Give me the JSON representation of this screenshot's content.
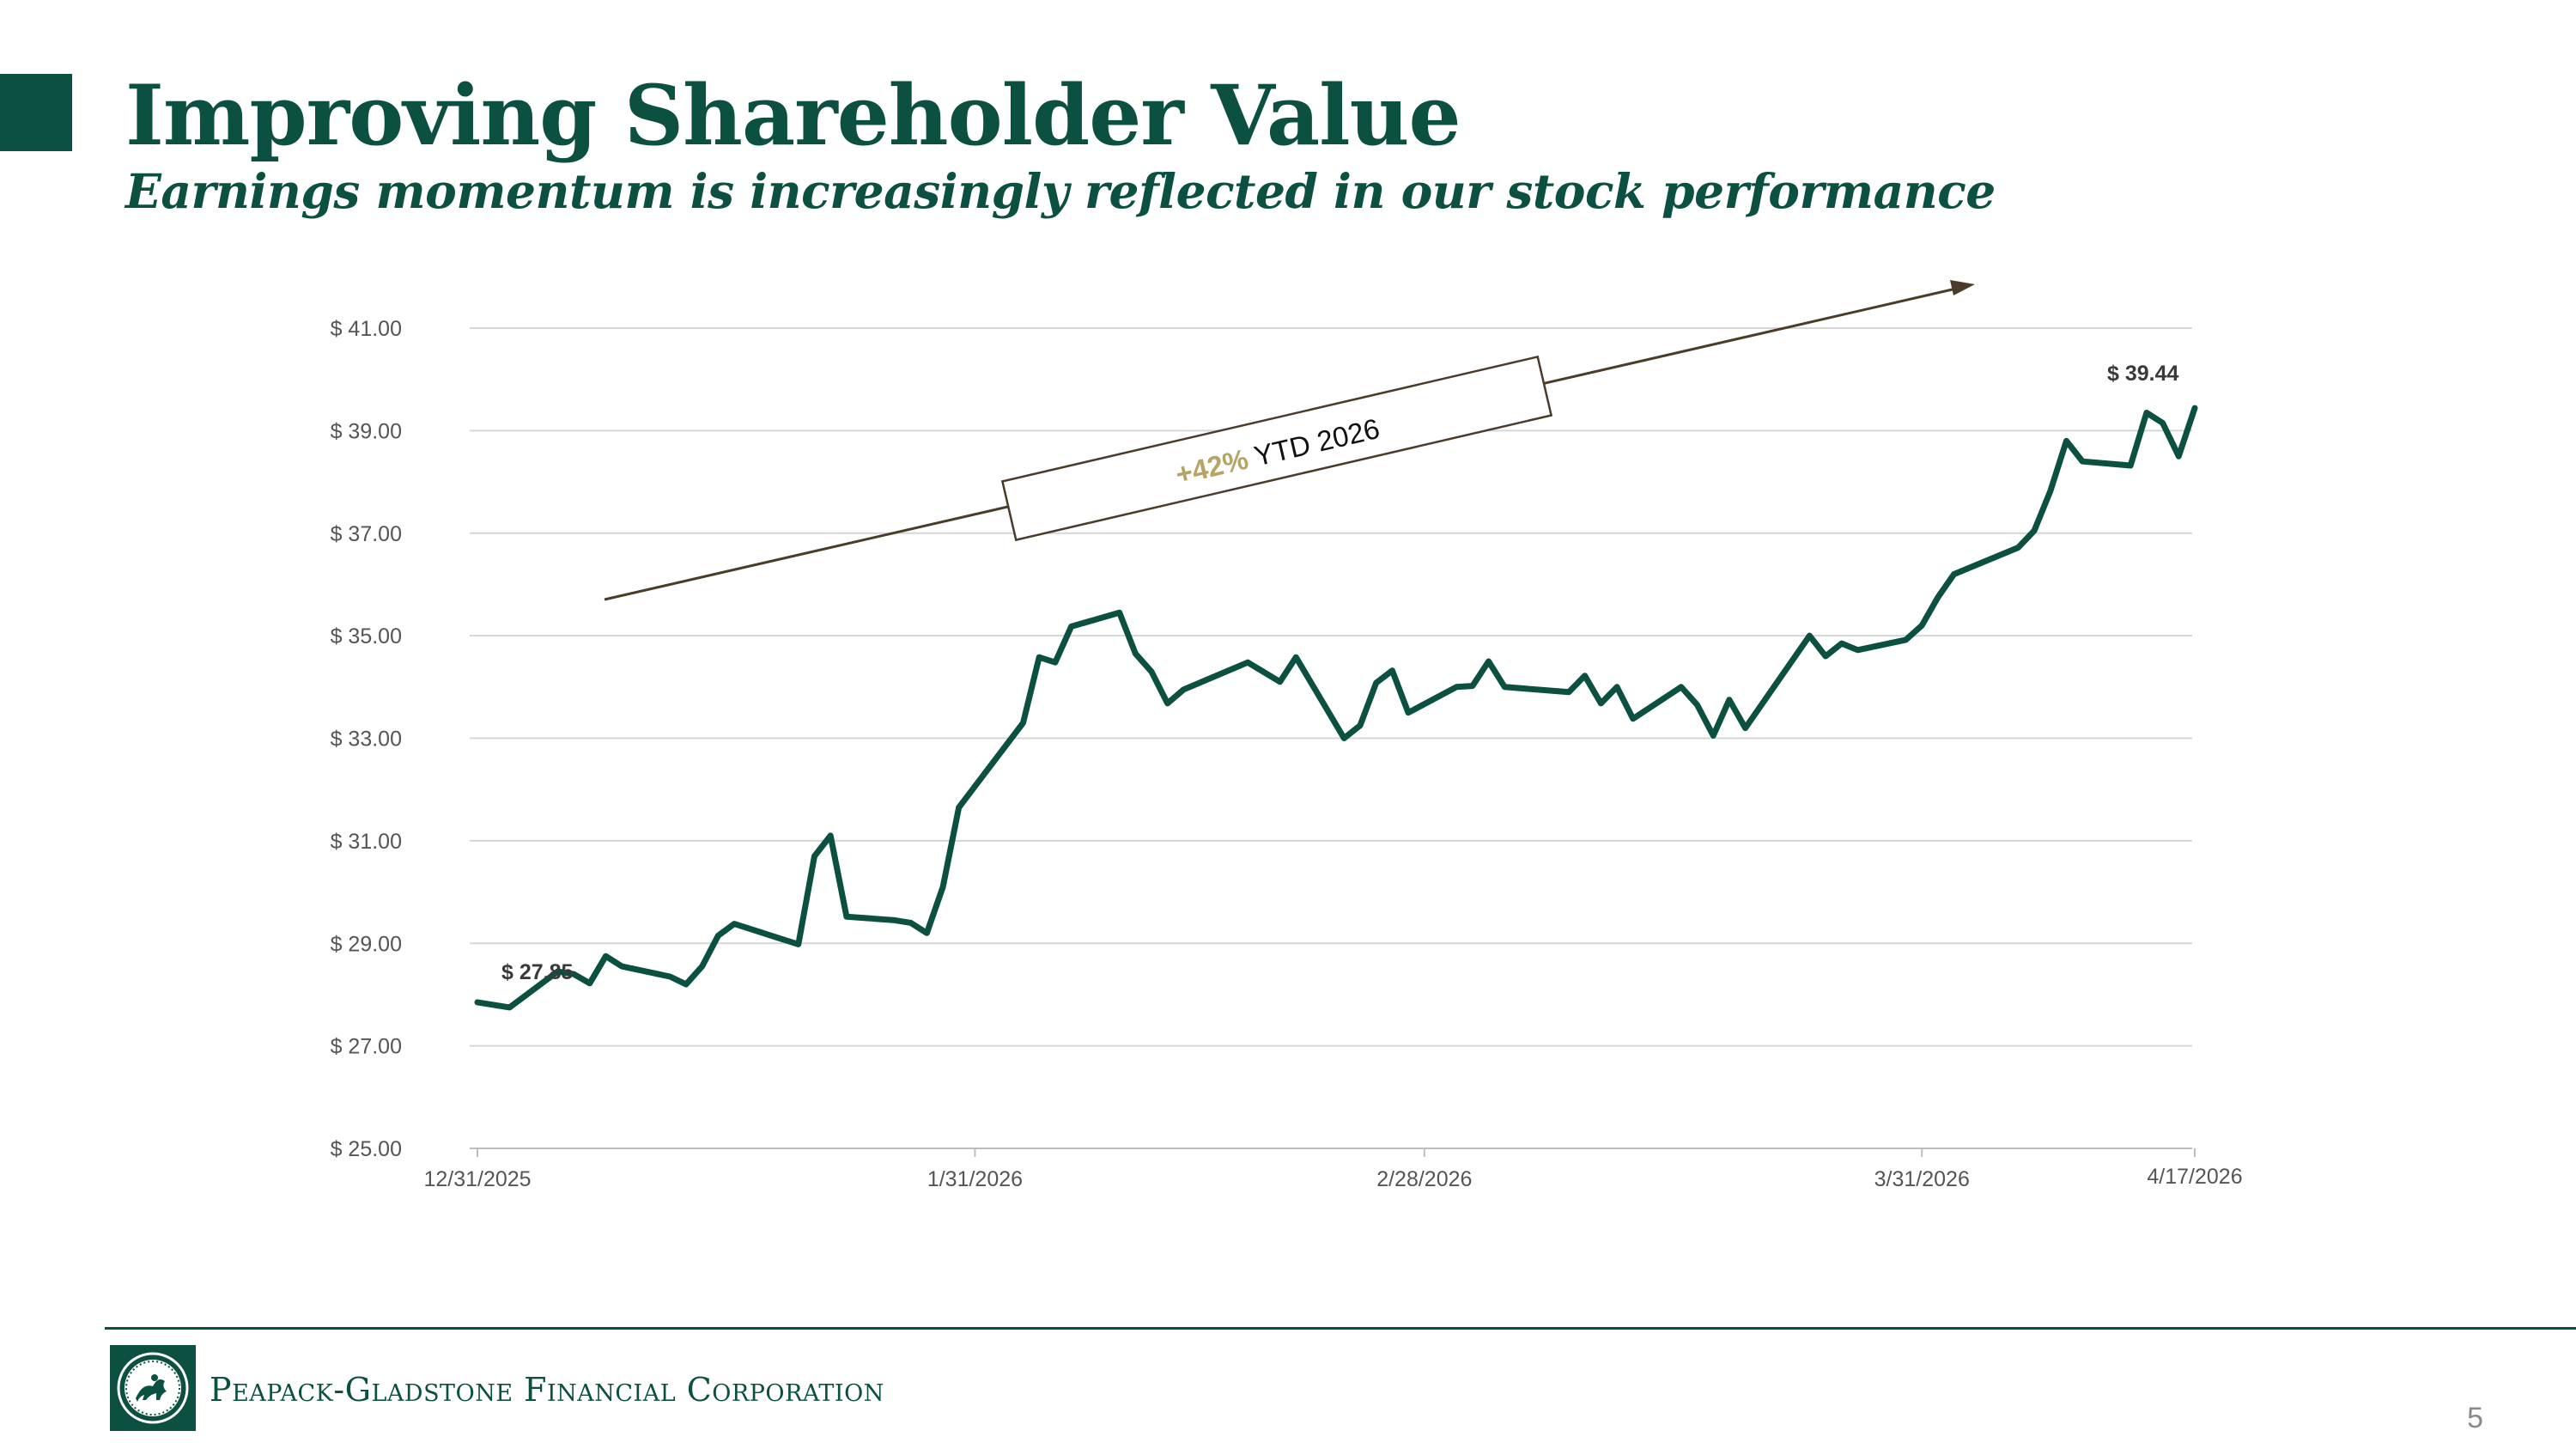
{
  "slide": {
    "title": "Improving Shareholder Value",
    "subtitle": "Earnings momentum is increasingly reflected in our stock performance",
    "page_number": "5"
  },
  "footer": {
    "company_name": "Peapack-Gladstone Financial Corporation"
  },
  "colors": {
    "brand_green": "#0b5040",
    "accent_gold": "#b5a466",
    "arrow_brown": "#4a3b2a"
  },
  "annotation": {
    "pct": "+42%",
    "rest": " YTD 2026"
  },
  "chart_data": {
    "type": "line",
    "title": "",
    "xlabel": "",
    "ylabel": "",
    "x_labels": [
      "12/31/2025",
      "1/31/2026",
      "2/28/2026",
      "3/31/2026",
      "4/17/2026"
    ],
    "x_label_days": [
      0,
      31,
      59,
      90,
      107
    ],
    "y_ticks": [
      25,
      27,
      29,
      31,
      33,
      35,
      37,
      39,
      41
    ],
    "y_tick_labels": [
      "$ 25.00",
      "$ 27.00",
      "$ 29.00",
      "$ 31.00",
      "$ 33.00",
      "$ 35.00",
      "$ 37.00",
      "$ 39.00",
      "$ 41.00"
    ],
    "ylim": [
      25,
      41
    ],
    "grid": true,
    "series": [
      {
        "name": "",
        "color": "#0b5040",
        "points": [
          {
            "x": "2025-12-31",
            "y": 27.85
          },
          {
            "x": "2026-01-02",
            "y": 27.75
          },
          {
            "x": "2026-01-05",
            "y": 28.45
          },
          {
            "x": "2026-01-06",
            "y": 28.4
          },
          {
            "x": "2026-01-07",
            "y": 28.22
          },
          {
            "x": "2026-01-08",
            "y": 28.75
          },
          {
            "x": "2026-01-09",
            "y": 28.55
          },
          {
            "x": "2026-01-12",
            "y": 28.35
          },
          {
            "x": "2026-01-13",
            "y": 28.2
          },
          {
            "x": "2026-01-14",
            "y": 28.55
          },
          {
            "x": "2026-01-15",
            "y": 29.15
          },
          {
            "x": "2026-01-16",
            "y": 29.38
          },
          {
            "x": "2026-01-20",
            "y": 28.98
          },
          {
            "x": "2026-01-21",
            "y": 30.7
          },
          {
            "x": "2026-01-22",
            "y": 31.1
          },
          {
            "x": "2026-01-23",
            "y": 29.52
          },
          {
            "x": "2026-01-26",
            "y": 29.45
          },
          {
            "x": "2026-01-27",
            "y": 29.4
          },
          {
            "x": "2026-01-28",
            "y": 29.2
          },
          {
            "x": "2026-01-29",
            "y": 30.1
          },
          {
            "x": "2026-01-30",
            "y": 31.65
          },
          {
            "x": "2026-02-03",
            "y": 33.3
          },
          {
            "x": "2026-02-04",
            "y": 34.58
          },
          {
            "x": "2026-02-05",
            "y": 34.48
          },
          {
            "x": "2026-02-06",
            "y": 35.18
          },
          {
            "x": "2026-02-09",
            "y": 35.45
          },
          {
            "x": "2026-02-10",
            "y": 34.65
          },
          {
            "x": "2026-02-11",
            "y": 34.3
          },
          {
            "x": "2026-02-12",
            "y": 33.68
          },
          {
            "x": "2026-02-13",
            "y": 33.95
          },
          {
            "x": "2026-02-17",
            "y": 34.48
          },
          {
            "x": "2026-02-19",
            "y": 34.1
          },
          {
            "x": "2026-02-20",
            "y": 34.58
          },
          {
            "x": "2026-02-23",
            "y": 33.0
          },
          {
            "x": "2026-02-24",
            "y": 33.25
          },
          {
            "x": "2026-02-25",
            "y": 34.08
          },
          {
            "x": "2026-02-26",
            "y": 34.32
          },
          {
            "x": "2026-02-27",
            "y": 33.5
          },
          {
            "x": "2026-03-02",
            "y": 34.0
          },
          {
            "x": "2026-03-03",
            "y": 34.02
          },
          {
            "x": "2026-03-04",
            "y": 34.5
          },
          {
            "x": "2026-03-05",
            "y": 34.0
          },
          {
            "x": "2026-03-09",
            "y": 33.9
          },
          {
            "x": "2026-03-10",
            "y": 34.22
          },
          {
            "x": "2026-03-11",
            "y": 33.68
          },
          {
            "x": "2026-03-12",
            "y": 34.0
          },
          {
            "x": "2026-03-13",
            "y": 33.38
          },
          {
            "x": "2026-03-16",
            "y": 34.0
          },
          {
            "x": "2026-03-17",
            "y": 33.65
          },
          {
            "x": "2026-03-18",
            "y": 33.05
          },
          {
            "x": "2026-03-19",
            "y": 33.75
          },
          {
            "x": "2026-03-20",
            "y": 33.2
          },
          {
            "x": "2026-03-24",
            "y": 35.0
          },
          {
            "x": "2026-03-25",
            "y": 34.6
          },
          {
            "x": "2026-03-26",
            "y": 34.85
          },
          {
            "x": "2026-03-27",
            "y": 34.72
          },
          {
            "x": "2026-03-30",
            "y": 34.92
          },
          {
            "x": "2026-03-31",
            "y": 35.2
          },
          {
            "x": "2026-04-01",
            "y": 35.75
          },
          {
            "x": "2026-04-02",
            "y": 36.2
          },
          {
            "x": "2026-04-06",
            "y": 36.72
          },
          {
            "x": "2026-04-07",
            "y": 37.05
          },
          {
            "x": "2026-04-08",
            "y": 37.82
          },
          {
            "x": "2026-04-09",
            "y": 38.8
          },
          {
            "x": "2026-04-10",
            "y": 38.4
          },
          {
            "x": "2026-04-13",
            "y": 38.32
          },
          {
            "x": "2026-04-14",
            "y": 39.35
          },
          {
            "x": "2026-04-15",
            "y": 39.15
          },
          {
            "x": "2026-04-16",
            "y": 38.5
          },
          {
            "x": "2026-04-17",
            "y": 39.44
          }
        ]
      }
    ],
    "data_labels": [
      {
        "x": "2025-12-31",
        "y": 27.85,
        "text": "$ 27.85"
      },
      {
        "x": "2026-04-17",
        "y": 39.44,
        "text": "$ 39.44"
      }
    ]
  }
}
